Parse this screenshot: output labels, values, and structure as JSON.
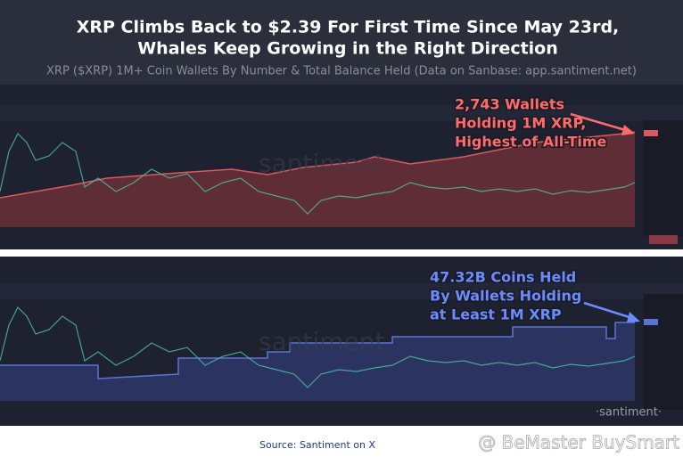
{
  "header": {
    "title_lines": [
      "XRP Climbs Back to $2.39 For First Time Since May 23rd,",
      "Whales Keep Growing in the Right Direction"
    ],
    "subtitle": "XRP ($XRP) 1M+ Coin Wallets By Number & Total Balance Held (Data on Sanbase: app.santiment.net)"
  },
  "panels": [
    {
      "annotation_lines": [
        "2,743 Wallets",
        "Holding 1M XRP,",
        "Highest of All-Time"
      ],
      "watermark": "santiment"
    },
    {
      "annotation_lines": [
        "47.32B Coins Held",
        "By Wallets Holding",
        "at Least 1M XRP"
      ],
      "watermark": "santiment"
    }
  ],
  "brand": "·santiment·",
  "footer": {
    "source": "Source: Santiment on X",
    "credit": "@ BeMaster BuySmart"
  }
}
